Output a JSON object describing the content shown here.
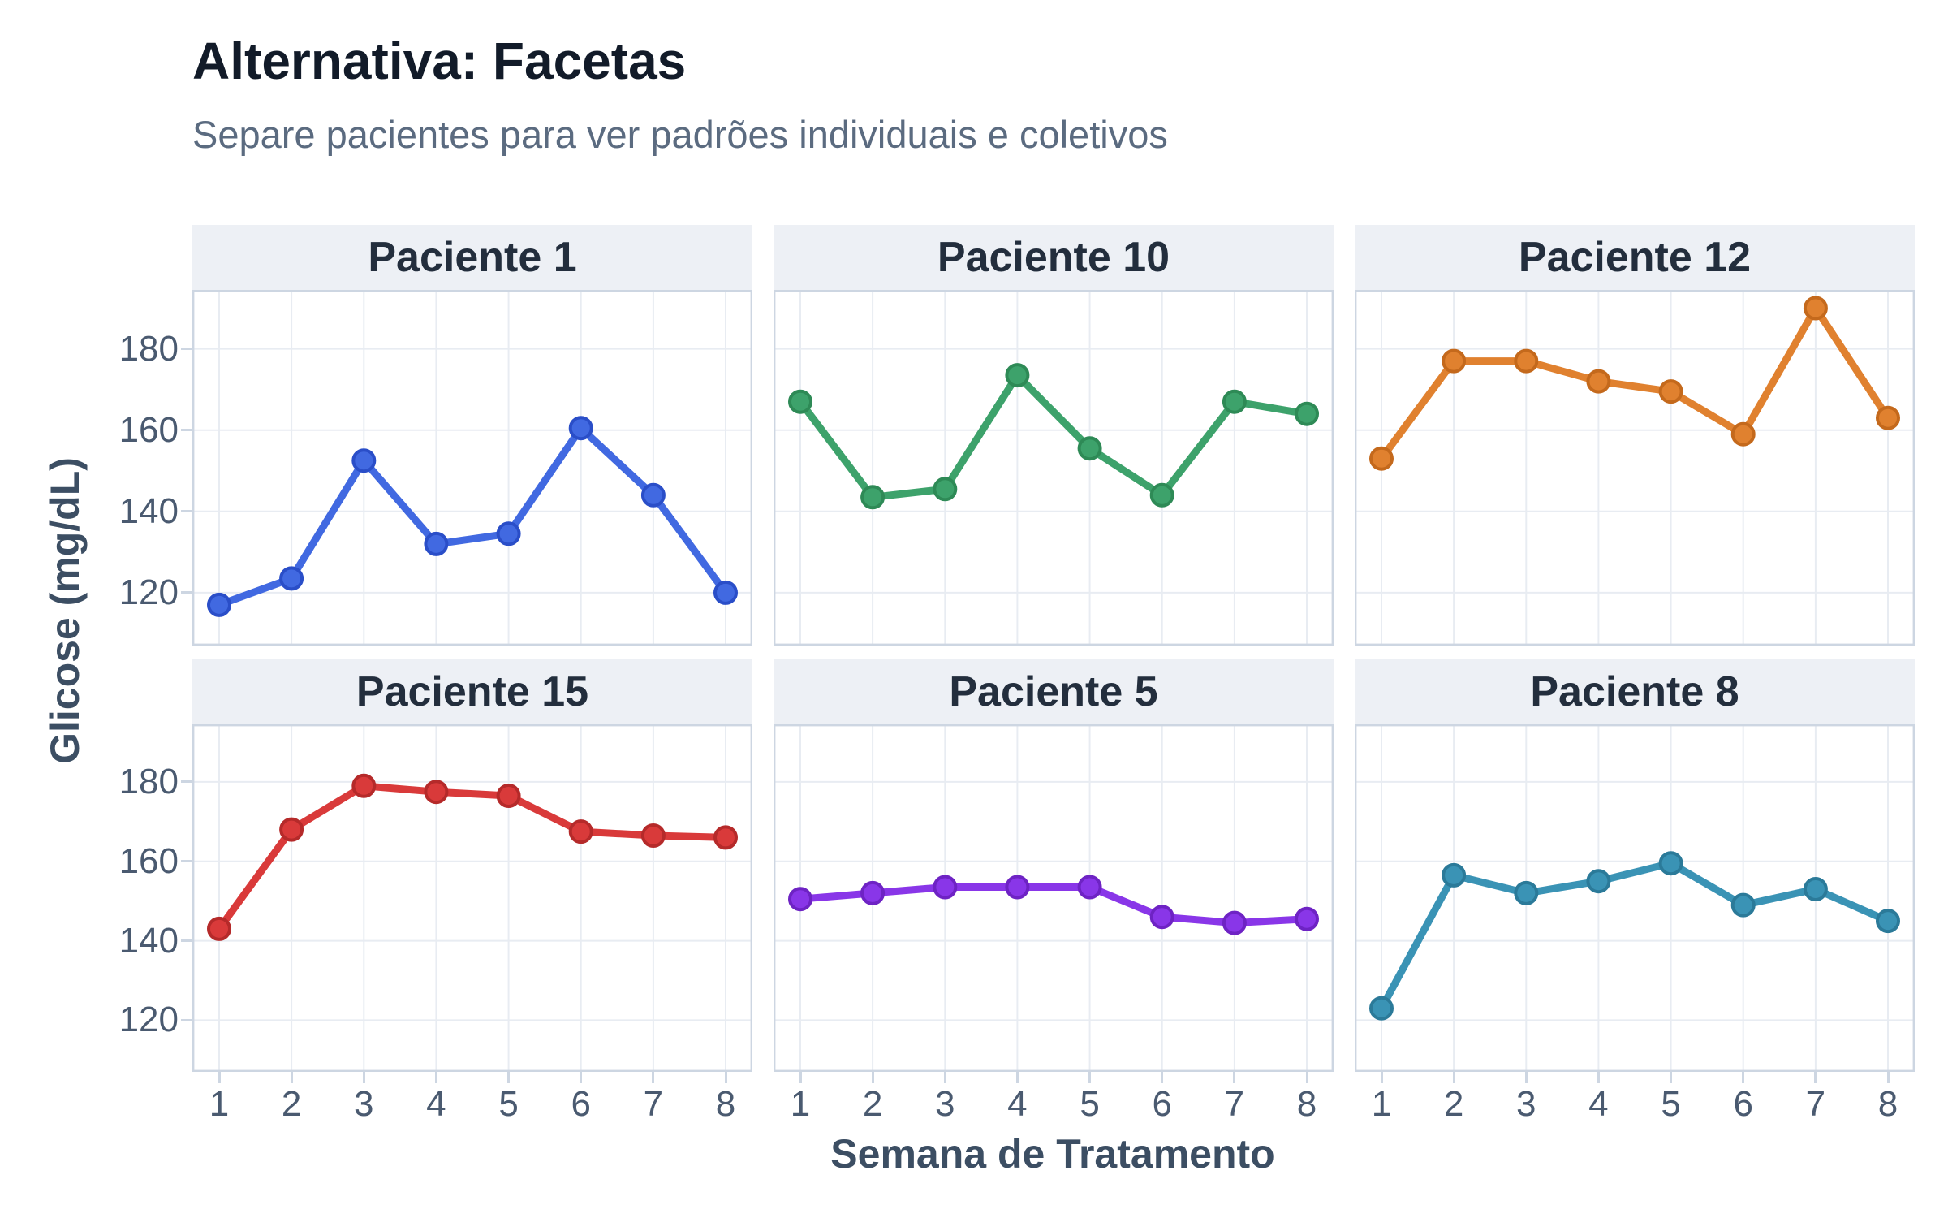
{
  "header": {
    "title": "Alternativa: Facetas",
    "subtitle": "Separe pacientes para ver padrões individuais e coletivos"
  },
  "axes": {
    "x_label": "Semana de Tratamento",
    "y_label": "Glicose (mg/dL)",
    "x_ticks": [
      "1",
      "2",
      "3",
      "4",
      "5",
      "6",
      "7",
      "8"
    ],
    "y_ticks": [
      "120",
      "140",
      "160",
      "180"
    ]
  },
  "colors": {
    "grid": "#e8ecf2",
    "spine": "#cdd6e2",
    "strip_bg": "#edf0f5",
    "title": "#121b29",
    "subtitle": "#5b6b80",
    "tick_text": "#4a5a70",
    "axis_title": "#3c4e63"
  },
  "chart_data": {
    "type": "line",
    "layout": "facet-grid-2x3",
    "x": [
      1,
      2,
      3,
      4,
      5,
      6,
      7,
      8
    ],
    "xlabel": "Semana de Tratamento",
    "ylabel": "Glicose (mg/dL)",
    "title": "Alternativa: Facetas",
    "subtitle": "Separe pacientes para ver padrões individuais e coletivos",
    "ylim": [
      107,
      194.5
    ],
    "xlim": [
      0.63,
      8.37
    ],
    "y_tick_values": [
      120,
      140,
      160,
      180
    ],
    "grid": true,
    "legend": false,
    "facets": [
      {
        "title": "Paciente 1",
        "color": "#4169E1",
        "edge_color": "#2A4EC8",
        "values": [
          117,
          123.5,
          152.5,
          132,
          134.5,
          160.5,
          144,
          120
        ]
      },
      {
        "title": "Paciente 10",
        "color": "#3DA26B",
        "edge_color": "#2E8A56",
        "values": [
          167,
          143.5,
          145.5,
          173.5,
          155.5,
          144,
          167,
          164
        ]
      },
      {
        "title": "Paciente 12",
        "color": "#E0812F",
        "edge_color": "#C4691C",
        "values": [
          153,
          177,
          177,
          172,
          169.5,
          159,
          190,
          163
        ]
      },
      {
        "title": "Paciente 15",
        "color": "#D93A3A",
        "edge_color": "#B52A2A",
        "values": [
          143,
          168,
          179,
          177.5,
          176.5,
          167.5,
          166.5,
          166
        ]
      },
      {
        "title": "Paciente 5",
        "color": "#8936E8",
        "edge_color": "#6E23C4",
        "values": [
          150.5,
          152,
          153.5,
          153.5,
          153.5,
          146,
          144.5,
          145.5
        ]
      },
      {
        "title": "Paciente 8",
        "color": "#3A93B5",
        "edge_color": "#2B7A99",
        "values": [
          123,
          156.5,
          152,
          155,
          159.5,
          149,
          153,
          145
        ]
      }
    ]
  }
}
